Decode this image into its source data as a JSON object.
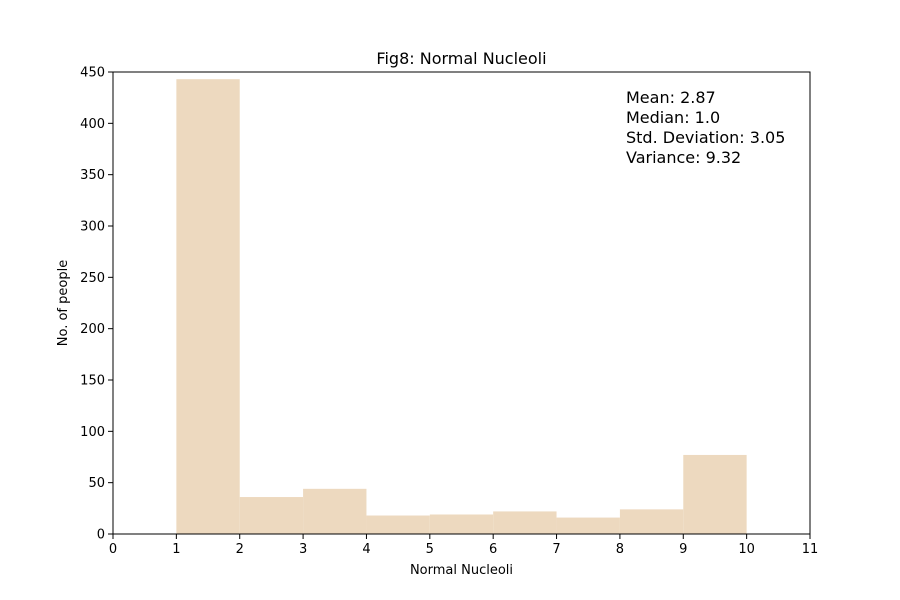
{
  "chart_data": {
    "type": "bar",
    "title": "Fig8: Normal Nucleoli",
    "xlabel": "Normal Nucleoli",
    "ylabel": "No. of people",
    "xlim": [
      0,
      11
    ],
    "ylim": [
      0,
      450
    ],
    "x_ticks": [
      "0",
      "1",
      "2",
      "3",
      "4",
      "5",
      "6",
      "7",
      "8",
      "9",
      "10",
      "11"
    ],
    "y_ticks": [
      "0",
      "50",
      "100",
      "150",
      "200",
      "250",
      "300",
      "350",
      "400",
      "450"
    ],
    "bins": [
      {
        "start": 1,
        "end": 2,
        "value": 443
      },
      {
        "start": 2,
        "end": 3,
        "value": 36
      },
      {
        "start": 3,
        "end": 4,
        "value": 44
      },
      {
        "start": 4,
        "end": 5,
        "value": 18
      },
      {
        "start": 5,
        "end": 6,
        "value": 19
      },
      {
        "start": 6,
        "end": 7,
        "value": 22
      },
      {
        "start": 7,
        "end": 8,
        "value": 16
      },
      {
        "start": 8,
        "end": 9,
        "value": 24
      },
      {
        "start": 9,
        "end": 10,
        "value": 77
      }
    ],
    "bar_color": "#EDD9BF",
    "grid": false,
    "legend": "none",
    "annotation": {
      "position": "top-right",
      "lines": [
        "Mean: 2.87",
        "Median: 1.0",
        "Std. Deviation: 3.05",
        "Variance: 9.32"
      ]
    }
  }
}
